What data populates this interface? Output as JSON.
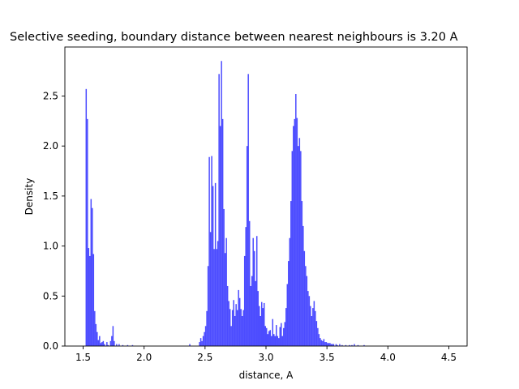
{
  "chart_data": {
    "type": "bar",
    "title": "Selective seeding, boundary distance between nearest neighbours is 3.20 A",
    "xlabel": "distance, A",
    "ylabel": "Density",
    "xlim": [
      1.35,
      4.65
    ],
    "ylim": [
      0.0,
      2.99
    ],
    "xticks": [
      "1.5",
      "2.0",
      "2.5",
      "3.0",
      "3.5",
      "4.0",
      "4.5"
    ],
    "yticks": [
      "0.0",
      "0.5",
      "1.0",
      "1.5",
      "2.0",
      "2.5"
    ],
    "bar_color": "#0000ff",
    "bar_alpha": 0.7,
    "grid": false,
    "bin_width": 0.01,
    "bins": [
      [
        1.52,
        2.57
      ],
      [
        1.53,
        2.27
      ],
      [
        1.54,
        0.98
      ],
      [
        1.55,
        0.9
      ],
      [
        1.56,
        1.47
      ],
      [
        1.57,
        1.38
      ],
      [
        1.58,
        0.92
      ],
      [
        1.59,
        0.35
      ],
      [
        1.6,
        0.22
      ],
      [
        1.61,
        0.14
      ],
      [
        1.62,
        0.06
      ],
      [
        1.63,
        0.1
      ],
      [
        1.64,
        0.03
      ],
      [
        1.65,
        0.04
      ],
      [
        1.66,
        0.05
      ],
      [
        1.67,
        0.02
      ],
      [
        1.69,
        0.04
      ],
      [
        1.7,
        0.01
      ],
      [
        1.72,
        0.05
      ],
      [
        1.73,
        0.1
      ],
      [
        1.74,
        0.2
      ],
      [
        1.75,
        0.05
      ],
      [
        1.77,
        0.02
      ],
      [
        1.79,
        0.02
      ],
      [
        1.82,
        0.01
      ],
      [
        1.86,
        0.01
      ],
      [
        1.9,
        0.01
      ],
      [
        2.37,
        0.02
      ],
      [
        2.45,
        0.04
      ],
      [
        2.46,
        0.08
      ],
      [
        2.47,
        0.05
      ],
      [
        2.48,
        0.1
      ],
      [
        2.49,
        0.14
      ],
      [
        2.5,
        0.2
      ],
      [
        2.51,
        0.35
      ],
      [
        2.52,
        0.8
      ],
      [
        2.53,
        1.89
      ],
      [
        2.54,
        1.14
      ],
      [
        2.55,
        1.9
      ],
      [
        2.56,
        1.6
      ],
      [
        2.57,
        0.97
      ],
      [
        2.58,
        1.63
      ],
      [
        2.59,
        0.97
      ],
      [
        2.6,
        1.05
      ],
      [
        2.61,
        2.72
      ],
      [
        2.62,
        2.2
      ],
      [
        2.63,
        2.85
      ],
      [
        2.64,
        2.27
      ],
      [
        2.65,
        1.37
      ],
      [
        2.66,
        0.93
      ],
      [
        2.67,
        1.08
      ],
      [
        2.68,
        0.6
      ],
      [
        2.69,
        0.45
      ],
      [
        2.7,
        0.37
      ],
      [
        2.71,
        0.2
      ],
      [
        2.72,
        0.36
      ],
      [
        2.73,
        0.46
      ],
      [
        2.74,
        0.3
      ],
      [
        2.75,
        0.42
      ],
      [
        2.76,
        0.36
      ],
      [
        2.77,
        0.56
      ],
      [
        2.78,
        0.48
      ],
      [
        2.79,
        0.37
      ],
      [
        2.8,
        0.3
      ],
      [
        2.81,
        0.36
      ],
      [
        2.82,
        0.9
      ],
      [
        2.83,
        1.19
      ],
      [
        2.84,
        2.0
      ],
      [
        2.85,
        2.72
      ],
      [
        2.86,
        1.25
      ],
      [
        2.87,
        0.6
      ],
      [
        2.88,
        0.7
      ],
      [
        2.89,
        1.08
      ],
      [
        2.9,
        0.95
      ],
      [
        2.91,
        0.65
      ],
      [
        2.92,
        1.1
      ],
      [
        2.93,
        0.55
      ],
      [
        2.94,
        0.4
      ],
      [
        2.95,
        0.3
      ],
      [
        2.96,
        0.44
      ],
      [
        2.97,
        0.38
      ],
      [
        2.98,
        0.43
      ],
      [
        2.99,
        0.2
      ],
      [
        3.0,
        0.18
      ],
      [
        3.01,
        0.12
      ],
      [
        3.02,
        0.15
      ],
      [
        3.03,
        0.16
      ],
      [
        3.04,
        0.1
      ],
      [
        3.05,
        0.27
      ],
      [
        3.06,
        0.12
      ],
      [
        3.07,
        0.1
      ],
      [
        3.08,
        0.21
      ],
      [
        3.09,
        0.1
      ],
      [
        3.1,
        0.08
      ],
      [
        3.11,
        0.19
      ],
      [
        3.12,
        0.23
      ],
      [
        3.13,
        0.1
      ],
      [
        3.14,
        0.18
      ],
      [
        3.15,
        0.24
      ],
      [
        3.16,
        0.38
      ],
      [
        3.17,
        0.62
      ],
      [
        3.18,
        0.85
      ],
      [
        3.19,
        1.08
      ],
      [
        3.2,
        1.45
      ],
      [
        3.21,
        1.95
      ],
      [
        3.22,
        2.2
      ],
      [
        3.23,
        2.27
      ],
      [
        3.24,
        2.52
      ],
      [
        3.25,
        2.28
      ],
      [
        3.26,
        2.0
      ],
      [
        3.27,
        2.08
      ],
      [
        3.28,
        1.95
      ],
      [
        3.29,
        1.45
      ],
      [
        3.3,
        1.2
      ],
      [
        3.31,
        0.95
      ],
      [
        3.32,
        0.8
      ],
      [
        3.33,
        0.7
      ],
      [
        3.34,
        0.55
      ],
      [
        3.35,
        0.5
      ],
      [
        3.36,
        0.4
      ],
      [
        3.37,
        0.3
      ],
      [
        3.38,
        0.38
      ],
      [
        3.39,
        0.45
      ],
      [
        3.4,
        0.35
      ],
      [
        3.41,
        0.25
      ],
      [
        3.42,
        0.18
      ],
      [
        3.43,
        0.12
      ],
      [
        3.44,
        0.08
      ],
      [
        3.45,
        0.06
      ],
      [
        3.46,
        0.05
      ],
      [
        3.47,
        0.07
      ],
      [
        3.48,
        0.04
      ],
      [
        3.49,
        0.04
      ],
      [
        3.5,
        0.03
      ],
      [
        3.51,
        0.03
      ],
      [
        3.52,
        0.03
      ],
      [
        3.53,
        0.02
      ],
      [
        3.54,
        0.02
      ],
      [
        3.55,
        0.02
      ],
      [
        3.57,
        0.02
      ],
      [
        3.58,
        0.01
      ],
      [
        3.6,
        0.02
      ],
      [
        3.62,
        0.01
      ],
      [
        3.65,
        0.01
      ],
      [
        3.68,
        0.01
      ],
      [
        3.7,
        0.01
      ],
      [
        3.72,
        0.02
      ],
      [
        3.75,
        0.01
      ],
      [
        3.8,
        0.01
      ]
    ]
  }
}
